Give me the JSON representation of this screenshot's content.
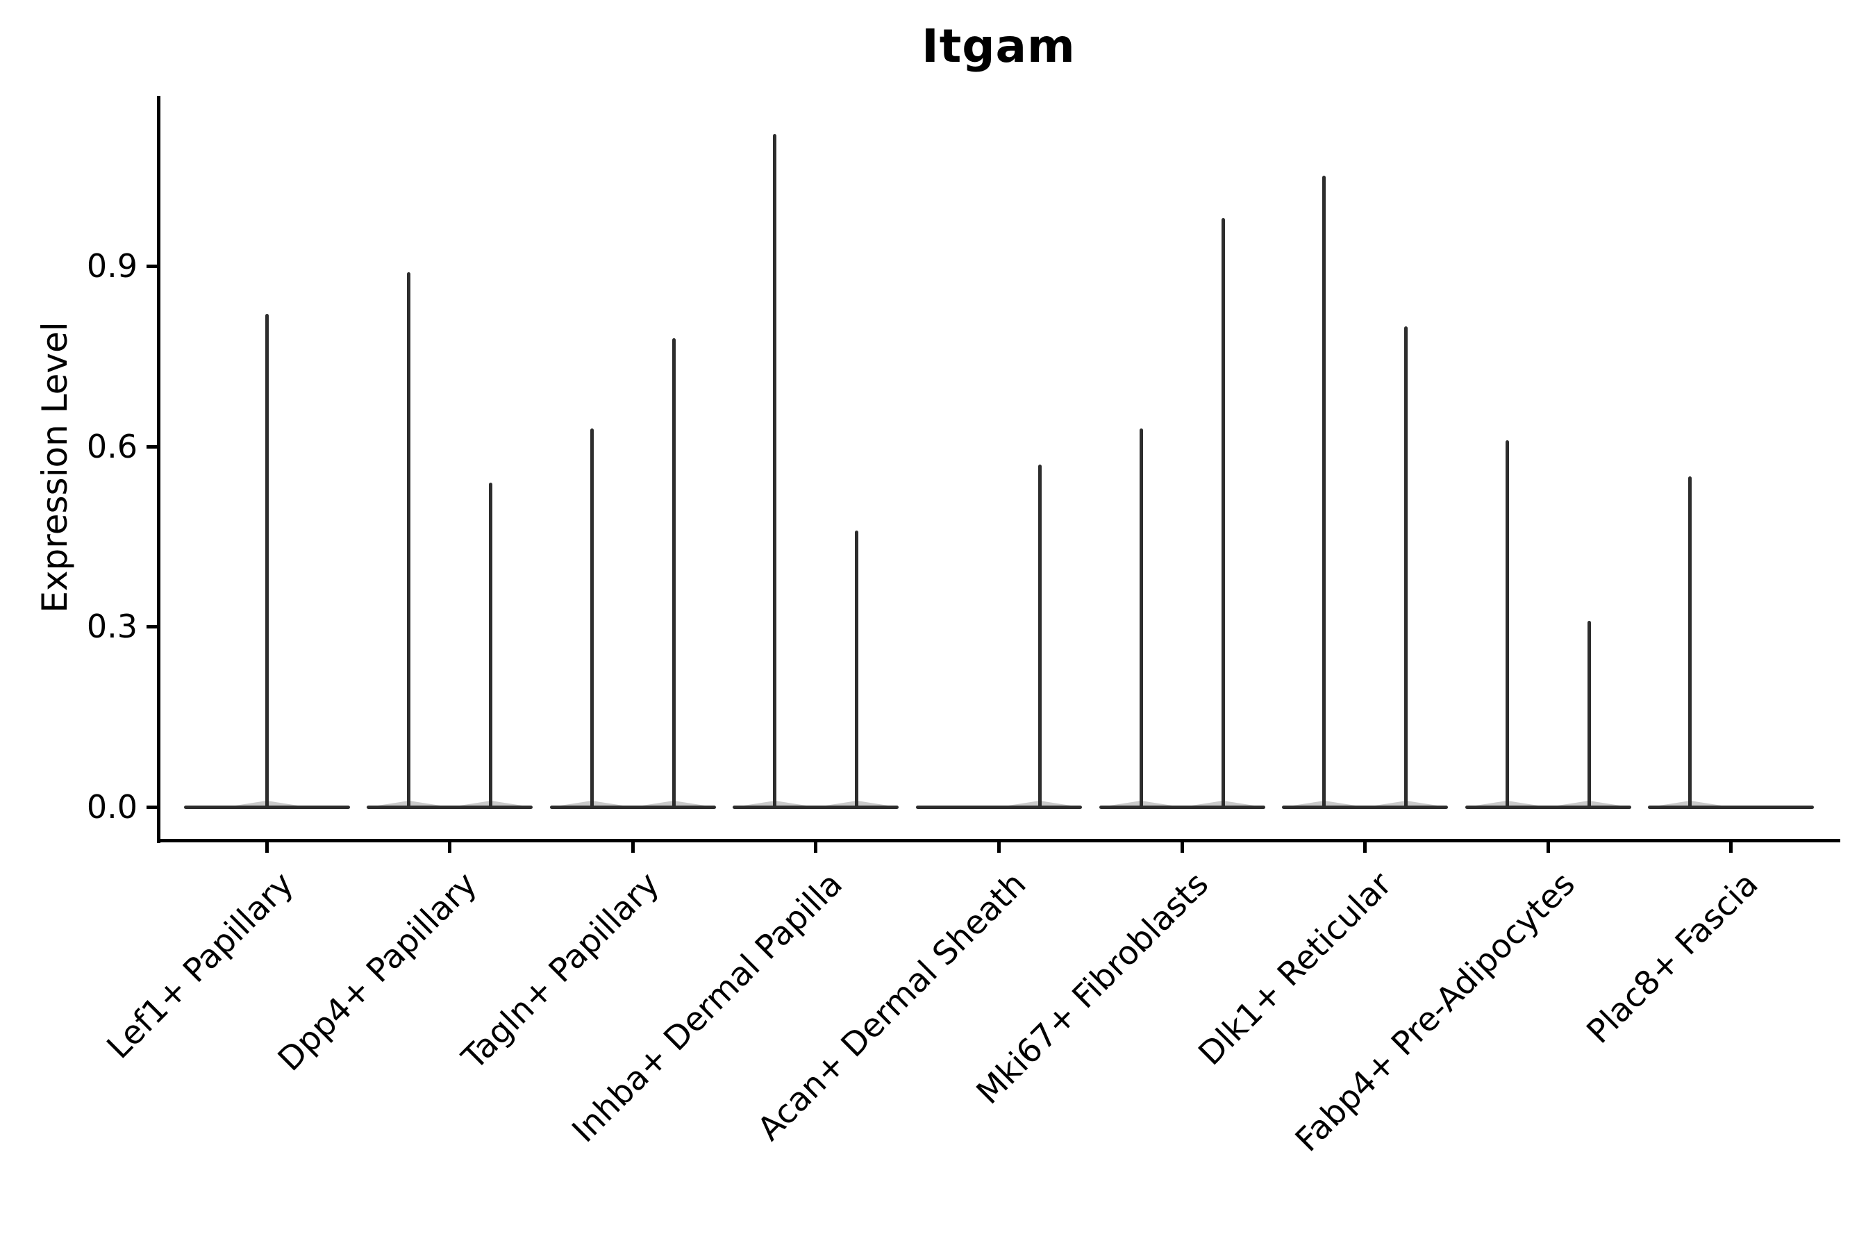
{
  "title": "Itgam",
  "y_axis": {
    "label": "Expression Level",
    "tick_labels": [
      "0.0",
      "0.3",
      "0.6",
      "0.9"
    ],
    "tick_values": [
      0.0,
      0.3,
      0.6,
      0.9
    ]
  },
  "x_axis": {
    "categories": [
      "Lef1+ Papillary",
      "Dpp4+ Papillary",
      "Tagln+ Papillary",
      "Inhba+ Dermal Papilla",
      "Acan+ Dermal Sheath",
      "Mki67+ Fibroblasts",
      "Dlk1+ Reticular",
      "Fabp4+ Pre-Adipocytes",
      "Plac8+ Fascia"
    ],
    "label_angle_deg": 45
  },
  "chart_data": {
    "type": "violin",
    "title": "Itgam",
    "xlabel": "",
    "ylabel": "Expression Level",
    "ylim": [
      -0.06,
      1.18
    ],
    "y_ticks": [
      0.0,
      0.3,
      0.6,
      0.9
    ],
    "grid": false,
    "legend": false,
    "baseline_value": 0.0,
    "categories": [
      "Lef1+ Papillary",
      "Dpp4+ Papillary",
      "Tagln+ Papillary",
      "Inhba+ Dermal Papilla",
      "Acan+ Dermal Sheath",
      "Mki67+ Fibroblasts",
      "Dlk1+ Reticular",
      "Fabp4+ Pre-Adipocytes",
      "Plac8+ Fascia"
    ],
    "violins": [
      {
        "category": "Lef1+ Papillary",
        "slots": [
          {
            "position": "center",
            "max_expression": 0.82
          }
        ]
      },
      {
        "category": "Dpp4+ Papillary",
        "slots": [
          {
            "position": "left",
            "max_expression": 0.89
          },
          {
            "position": "right",
            "max_expression": 0.54
          }
        ]
      },
      {
        "category": "Tagln+ Papillary",
        "slots": [
          {
            "position": "left",
            "max_expression": 0.63
          },
          {
            "position": "right",
            "max_expression": 0.78
          }
        ]
      },
      {
        "category": "Inhba+ Dermal Papilla",
        "slots": [
          {
            "position": "left",
            "max_expression": 1.12
          },
          {
            "position": "right",
            "max_expression": 0.46
          }
        ]
      },
      {
        "category": "Acan+ Dermal Sheath",
        "slots": [
          {
            "position": "right",
            "max_expression": 0.57
          }
        ]
      },
      {
        "category": "Mki67+ Fibroblasts",
        "slots": [
          {
            "position": "left",
            "max_expression": 0.63
          },
          {
            "position": "right",
            "max_expression": 0.98
          }
        ]
      },
      {
        "category": "Dlk1+ Reticular",
        "slots": [
          {
            "position": "left",
            "max_expression": 1.05
          },
          {
            "position": "right",
            "max_expression": 0.8
          }
        ]
      },
      {
        "category": "Fabp4+ Pre-Adipocytes",
        "slots": [
          {
            "position": "left",
            "max_expression": 0.61
          },
          {
            "position": "right",
            "max_expression": 0.31
          }
        ]
      },
      {
        "category": "Plac8+ Fascia",
        "slots": [
          {
            "position": "left",
            "max_expression": 0.55
          }
        ]
      }
    ]
  },
  "colors": {
    "background": "#ffffff",
    "violin_stroke": "#2d2d2d",
    "axis": "#000000",
    "text": "#000000"
  }
}
